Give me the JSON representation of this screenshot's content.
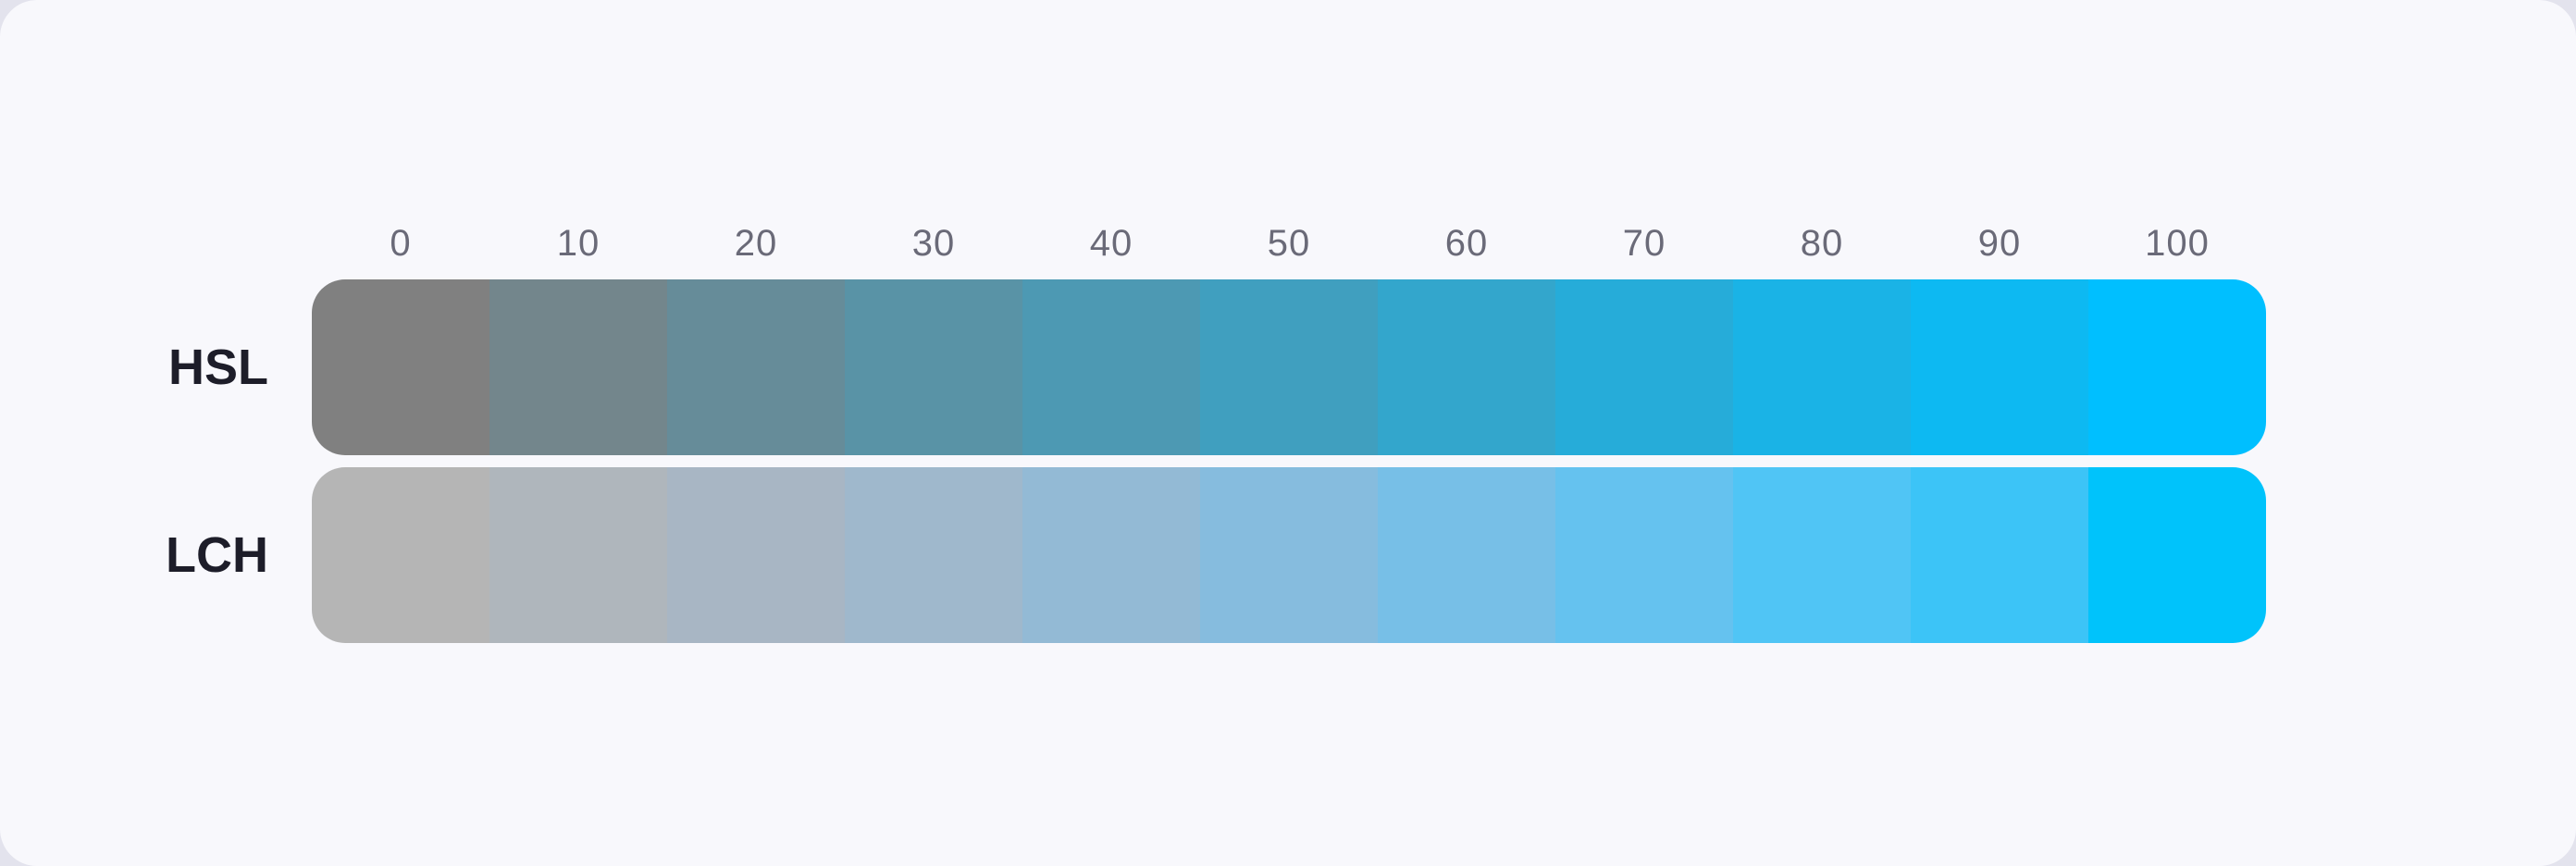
{
  "figure": {
    "card_background": "#F8F8FC",
    "outer_background": "#E3E3ED",
    "tick_color": "#6A6A78",
    "row_label_color": "#1D1D29",
    "ticks": [
      "0",
      "10",
      "20",
      "30",
      "40",
      "50",
      "60",
      "70",
      "80",
      "90",
      "100"
    ],
    "rows": [
      {
        "label": "HSL",
        "colors": [
          "#808080",
          "#73868C",
          "#668C99",
          "#5993A6",
          "#4D99B3",
          "#409FBF",
          "#33A6CC",
          "#26ACD9",
          "#1AB3E6",
          "#0DB9F2",
          "#00BFFF"
        ]
      },
      {
        "label": "LCH",
        "colors": [
          "#B5B5B5",
          "#AFB6BC",
          "#A8B6C4",
          "#9FB8CC",
          "#93BAD5",
          "#86BCDE",
          "#77BFE7",
          "#65C2EF",
          "#50C5F5",
          "#3CC4F7",
          "#00C3FB"
        ]
      }
    ]
  },
  "chart_data": {
    "type": "heatmap",
    "title": "",
    "xlabel": "",
    "ylabel": "",
    "x": [
      0,
      10,
      20,
      30,
      40,
      50,
      60,
      70,
      80,
      90,
      100
    ],
    "x_ticks": [
      "0",
      "10",
      "20",
      "30",
      "40",
      "50",
      "60",
      "70",
      "80",
      "90",
      "100"
    ],
    "categories_y": [
      "HSL",
      "LCH"
    ],
    "series": [
      {
        "name": "HSL",
        "cell_colors": [
          "#808080",
          "#73868C",
          "#668C99",
          "#5993A6",
          "#4D99B3",
          "#409FBF",
          "#33A6CC",
          "#26ACD9",
          "#1AB3E6",
          "#0DB9F2",
          "#00BFFF"
        ]
      },
      {
        "name": "LCH",
        "cell_colors": [
          "#B5B5B5",
          "#AFB6BC",
          "#A8B6C4",
          "#9FB8CC",
          "#93BAD5",
          "#86BCDE",
          "#77BFE7",
          "#65C2EF",
          "#50C5F5",
          "#3CC4F7",
          "#00C3FB"
        ]
      }
    ],
    "legend": "none",
    "grid": false
  }
}
